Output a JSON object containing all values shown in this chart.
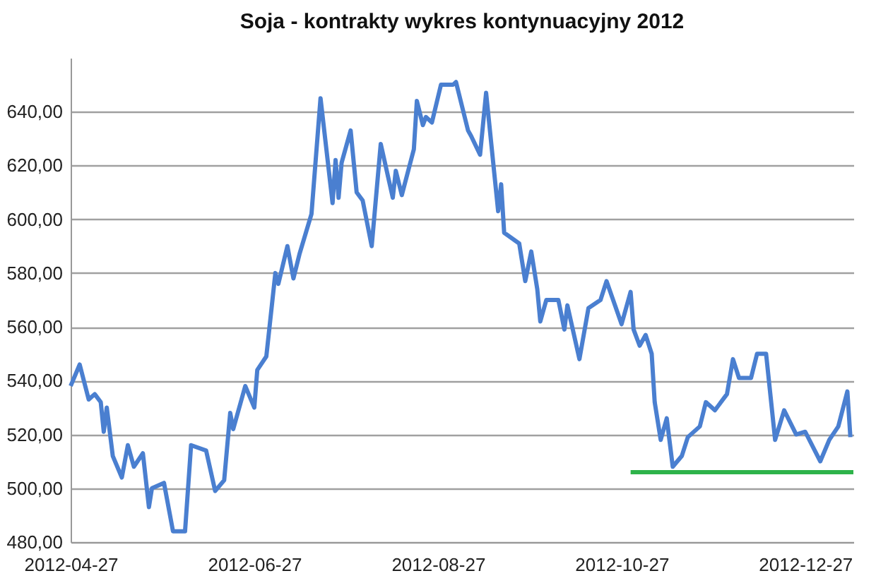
{
  "chart_data": {
    "type": "line",
    "title": "Soja - kontrakty wykres kontynuacyjny 2012",
    "x": [
      "2012-04-27",
      "2012-04-30",
      "2012-05-03",
      "2012-05-05",
      "2012-05-07",
      "2012-05-08",
      "2012-05-09",
      "2012-05-11",
      "2012-05-14",
      "2012-05-16",
      "2012-05-18",
      "2012-05-21",
      "2012-05-23",
      "2012-05-24",
      "2012-05-28",
      "2012-05-31",
      "2012-06-04",
      "2012-06-06",
      "2012-06-11",
      "2012-06-14",
      "2012-06-17",
      "2012-06-19",
      "2012-06-20",
      "2012-06-24",
      "2012-06-27",
      "2012-06-28",
      "2012-07-01",
      "2012-07-04",
      "2012-07-05",
      "2012-07-08",
      "2012-07-10",
      "2012-07-12",
      "2012-07-16",
      "2012-07-19",
      "2012-07-23",
      "2012-07-24",
      "2012-07-25",
      "2012-07-26",
      "2012-07-29",
      "2012-07-31",
      "2012-08-02",
      "2012-08-05",
      "2012-08-08",
      "2012-08-12",
      "2012-08-13",
      "2012-08-15",
      "2012-08-19",
      "2012-08-20",
      "2012-08-22",
      "2012-08-23",
      "2012-08-25",
      "2012-08-28",
      "2012-09-01",
      "2012-09-02",
      "2012-09-06",
      "2012-09-07",
      "2012-09-10",
      "2012-09-12",
      "2012-09-16",
      "2012-09-17",
      "2012-09-18",
      "2012-09-23",
      "2012-09-25",
      "2012-09-27",
      "2012-09-29",
      "2012-09-30",
      "2012-10-02",
      "2012-10-06",
      "2012-10-08",
      "2012-10-09",
      "2012-10-13",
      "2012-10-16",
      "2012-10-20",
      "2012-10-22",
      "2012-10-27",
      "2012-10-30",
      "2012-10-31",
      "2012-11-02",
      "2012-11-04",
      "2012-11-06",
      "2012-11-07",
      "2012-11-09",
      "2012-11-11",
      "2012-11-13",
      "2012-11-16",
      "2012-11-18",
      "2012-11-22",
      "2012-11-24",
      "2012-11-27",
      "2012-12-01",
      "2012-12-03",
      "2012-12-05",
      "2012-12-09",
      "2012-12-11",
      "2012-12-14",
      "2012-12-17",
      "2012-12-20",
      "2012-12-24",
      "2012-12-27",
      "2013-01-01",
      "2013-01-04",
      "2013-01-07",
      "2013-01-10",
      "2013-01-11"
    ],
    "series": [
      {
        "color": "#4a7fd0",
        "values": [
          538,
          546,
          533,
          535,
          532,
          521,
          530,
          512,
          504,
          516,
          508,
          513,
          493,
          500,
          502,
          484,
          484,
          516,
          514,
          499,
          503,
          528,
          522,
          538,
          530,
          544,
          549,
          580,
          576,
          590,
          578,
          587,
          602,
          645,
          606,
          622,
          608,
          621,
          633,
          610,
          607,
          590,
          628,
          608,
          618,
          609,
          626,
          644,
          635,
          638,
          636,
          650,
          650,
          651,
          633,
          631,
          624,
          647,
          603,
          613,
          595,
          591,
          577,
          588,
          574,
          562,
          570,
          570,
          559,
          568,
          548,
          567,
          570,
          577,
          561,
          573,
          559,
          553,
          557,
          550,
          532,
          518,
          526,
          508,
          512,
          519,
          523,
          532,
          529,
          535,
          548,
          541,
          541,
          550,
          550,
          518,
          529,
          520,
          521,
          510,
          518,
          523,
          536,
          519
        ]
      },
      {
        "type": "line",
        "color": "#2eb34a",
        "x": [
          "2012-10-30",
          "2013-01-12"
        ],
        "values": [
          506,
          506
        ]
      }
    ],
    "xlim": [
      "2012-04-27",
      "2013-01-12"
    ],
    "xticks": [
      "2012-04-27",
      "2012-06-27",
      "2012-08-27",
      "2012-10-27",
      "2012-12-27"
    ],
    "ylim": [
      480,
      660
    ],
    "yticks": [
      {
        "value": 480,
        "label": "480,00"
      },
      {
        "value": 500,
        "label": "500,00"
      },
      {
        "value": 520,
        "label": "520,00"
      },
      {
        "value": 540,
        "label": "540,00"
      },
      {
        "value": 560,
        "label": "560,00"
      },
      {
        "value": 580,
        "label": "580,00"
      },
      {
        "value": 600,
        "label": "600,00"
      },
      {
        "value": 620,
        "label": "620,00"
      },
      {
        "value": 640,
        "label": "640,00"
      }
    ],
    "grid": "y",
    "marker": "none",
    "line_style": "solid"
  }
}
